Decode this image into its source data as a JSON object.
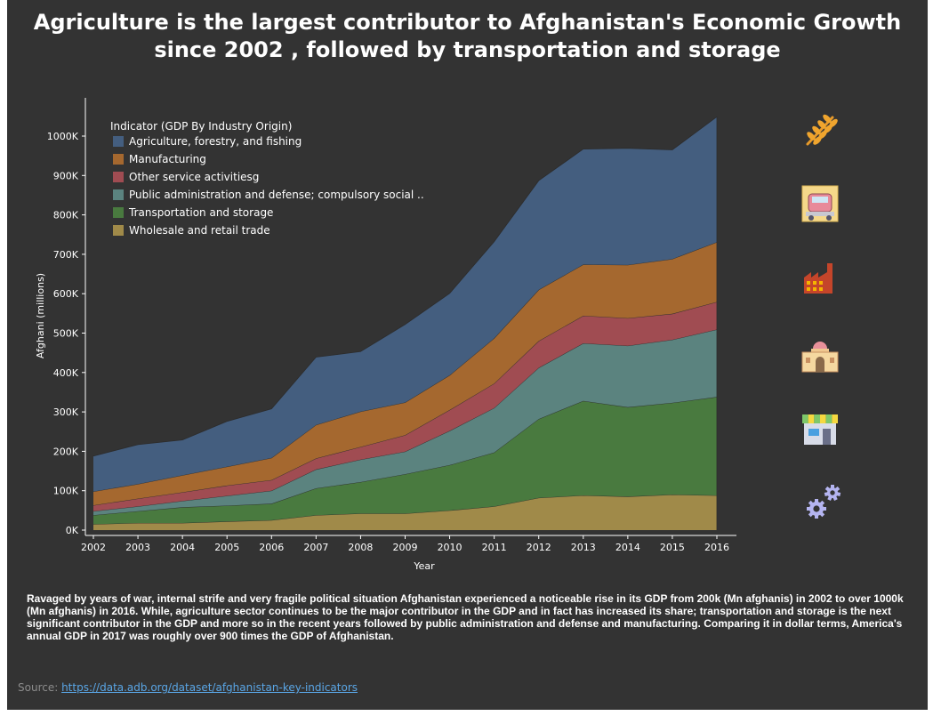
{
  "title_lines": [
    "Agriculture is the largest contributor to Afghanistan's Economic Growth",
    "since 2002 , followed by transportation and storage"
  ],
  "description": "Ravaged by years of war, internal strife and very fragile political situation Afghanistan experienced a noticeable rise in its GDP from 200k (Mn afghanis) in 2002 to over 1000k (Mn afghanis) in 2016. While, agriculture sector continues to be the major contributor in the GDP and in fact has increased its share; transportation and storage is the next significant contributor in the GDP and more so in the recent years followed by public administration and defense and manufacturing. Comparing it in dollar terms, America's annual GDP in 2017 was roughly over 900 times the GDP of Afghanistan.",
  "source": {
    "label": "Source: ",
    "link_text": "https://data.adb.org/dataset/afghanistan-key-indicators"
  },
  "icons": [
    "wheat-icon",
    "truck-icon",
    "factory-icon",
    "government-building-icon",
    "store-icon",
    "gears-icon"
  ],
  "chart_data": {
    "type": "area",
    "stacked": true,
    "xlabel": "Year",
    "ylabel": "Afghani (millions)",
    "legend_title": "Indicator (GDP By Industry Origin)",
    "legend_position": "top-left",
    "ylim": [
      0,
      1100000
    ],
    "xlim": [
      2002,
      2016
    ],
    "x_ticks": [
      "2002",
      "2003",
      "2004",
      "2005",
      "2006",
      "2007",
      "2008",
      "2009",
      "2010",
      "2011",
      "2012",
      "2013",
      "2014",
      "2015",
      "2016"
    ],
    "y_ticks": [
      {
        "value": 0,
        "label": "0K"
      },
      {
        "value": 100000,
        "label": "100K"
      },
      {
        "value": 200000,
        "label": "200K"
      },
      {
        "value": 300000,
        "label": "300K"
      },
      {
        "value": 400000,
        "label": "400K"
      },
      {
        "value": 500000,
        "label": "500K"
      },
      {
        "value": 600000,
        "label": "600K"
      },
      {
        "value": 700000,
        "label": "700K"
      },
      {
        "value": 800000,
        "label": "800K"
      },
      {
        "value": 900000,
        "label": "900K"
      },
      {
        "value": 1000000,
        "label": "1000K"
      }
    ],
    "x": [
      2002,
      2003,
      2004,
      2005,
      2006,
      2007,
      2008,
      2009,
      2010,
      2011,
      2012,
      2013,
      2014,
      2015,
      2016
    ],
    "series_stack_order": [
      "Wholesale and retail trade",
      "Transportation and storage",
      "Public administration and defense; compulsory social ..",
      "Other service activitiesg",
      "Manufacturing",
      "Agriculture, forestry, and fishing"
    ],
    "series": [
      {
        "name": "Agriculture, forestry, and fishing",
        "color": "#445e7f",
        "values": [
          90000,
          100000,
          90000,
          115000,
          125000,
          172000,
          152000,
          198000,
          208000,
          245000,
          277000,
          293000,
          296000,
          277000,
          318000
        ]
      },
      {
        "name": "Manufacturing",
        "color": "#a5682f",
        "values": [
          35000,
          37000,
          43000,
          48000,
          56000,
          85000,
          90000,
          83000,
          88000,
          115000,
          130000,
          130000,
          135000,
          139000,
          152000
        ]
      },
      {
        "name": "Other service activitiesg",
        "color": "#a04c52",
        "values": [
          15000,
          20000,
          22000,
          26000,
          27000,
          28000,
          32000,
          42000,
          53000,
          62000,
          68000,
          70000,
          70000,
          66000,
          70000
        ]
      },
      {
        "name": "Public administration and defense; compulsory social ..",
        "color": "#5b837f",
        "values": [
          10000,
          12000,
          16000,
          25000,
          33000,
          48000,
          57000,
          57000,
          87000,
          113000,
          130000,
          146000,
          156000,
          160000,
          171000
        ]
      },
      {
        "name": "Transportation and storage",
        "color": "#497a3f",
        "values": [
          23000,
          30000,
          40000,
          40000,
          42000,
          68000,
          80000,
          100000,
          115000,
          137000,
          200000,
          240000,
          227000,
          233000,
          250000
        ]
      },
      {
        "name": "Wholesale and retail trade",
        "color": "#a08a49",
        "values": [
          15000,
          18000,
          18000,
          22000,
          25000,
          38000,
          42000,
          42000,
          50000,
          60000,
          82000,
          88000,
          85000,
          90000,
          88000
        ]
      }
    ]
  }
}
